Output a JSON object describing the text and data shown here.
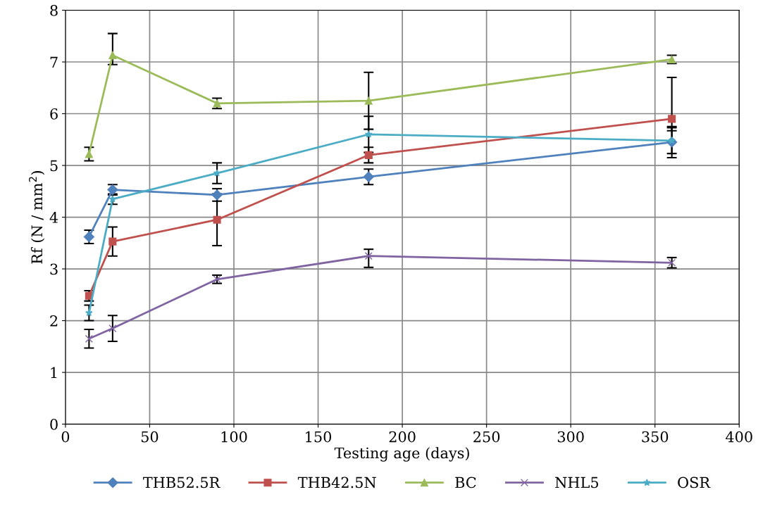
{
  "chart_data": {
    "type": "line",
    "xlabel": "Testing age (days)",
    "ylabel": "Rf (N / mm$^{2}$)",
    "xlim": [
      0,
      400
    ],
    "xticks": [
      0,
      50,
      100,
      150,
      200,
      250,
      300,
      350,
      400
    ],
    "ylim": [
      0,
      8
    ],
    "yticks": [
      0,
      1,
      2,
      3,
      4,
      5,
      6,
      7,
      8
    ],
    "grid": true,
    "legend": "bottom",
    "x": [
      14,
      28,
      90,
      180,
      360
    ],
    "series": [
      {
        "name": "THB52.5R",
        "color": "#4f81bd",
        "marker": "diamond",
        "values": [
          3.62,
          4.53,
          4.43,
          4.78,
          5.45
        ],
        "errors": [
          0.13,
          0.1,
          0.12,
          0.15,
          0.3
        ]
      },
      {
        "name": "THB42.5N",
        "color": "#c0504d",
        "marker": "square",
        "values": [
          2.48,
          3.53,
          3.95,
          5.2,
          5.9
        ],
        "errors": [
          0.1,
          0.28,
          0.5,
          0.15,
          [
            5.67,
            6.7
          ]
        ]
      },
      {
        "name": "BC",
        "color": "#9bbb59",
        "marker": "triangle",
        "values": [
          5.22,
          7.13,
          6.2,
          6.25,
          7.05
        ],
        "errors": [
          0.13,
          [
            6.95,
            7.55
          ],
          0.1,
          0.55,
          0.08
        ]
      },
      {
        "name": "NHL5",
        "color": "#8064a2",
        "marker": "cross",
        "values": [
          1.65,
          1.85,
          2.8,
          3.25,
          3.12
        ],
        "errors": [
          0.18,
          0.25,
          0.08,
          [
            3.03,
            3.38
          ],
          0.1
        ]
      },
      {
        "name": "OSR",
        "color": "#4bacc6",
        "marker": "star",
        "values": [
          2.15,
          4.35,
          4.85,
          5.6,
          5.48
        ],
        "errors": [
          0.15,
          0.1,
          0.2,
          0.35,
          0.25
        ]
      }
    ]
  }
}
